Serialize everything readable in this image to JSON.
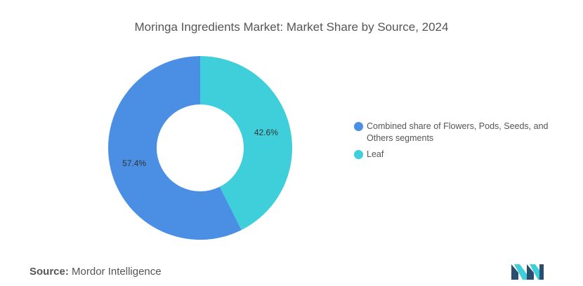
{
  "chart_data": {
    "type": "pie",
    "variant": "donut",
    "title": "Moringa Ingredients Market: Market Share by Source, 2024",
    "slices": [
      {
        "label": "Leaf",
        "value": 42.6,
        "display": "42.6%",
        "color": "#3ECFDB"
      },
      {
        "label": "Combined share of Flowers, Pods, Seeds, and Others segments",
        "value": 57.4,
        "display": "57.4%",
        "color": "#4A8FE3"
      }
    ],
    "legend": {
      "placement": "right",
      "entries": [
        {
          "label": "Combined share of Flowers, Pods, Seeds, and Others segments",
          "color": "#4A8FE3"
        },
        {
          "label": "Leaf",
          "color": "#3ECFDB"
        }
      ]
    }
  },
  "footer": {
    "source_label": "Source:",
    "source_name": "Mordor Intelligence",
    "logo_colors": {
      "dark": "#2B4E6E",
      "light": "#3ECFDB"
    }
  }
}
